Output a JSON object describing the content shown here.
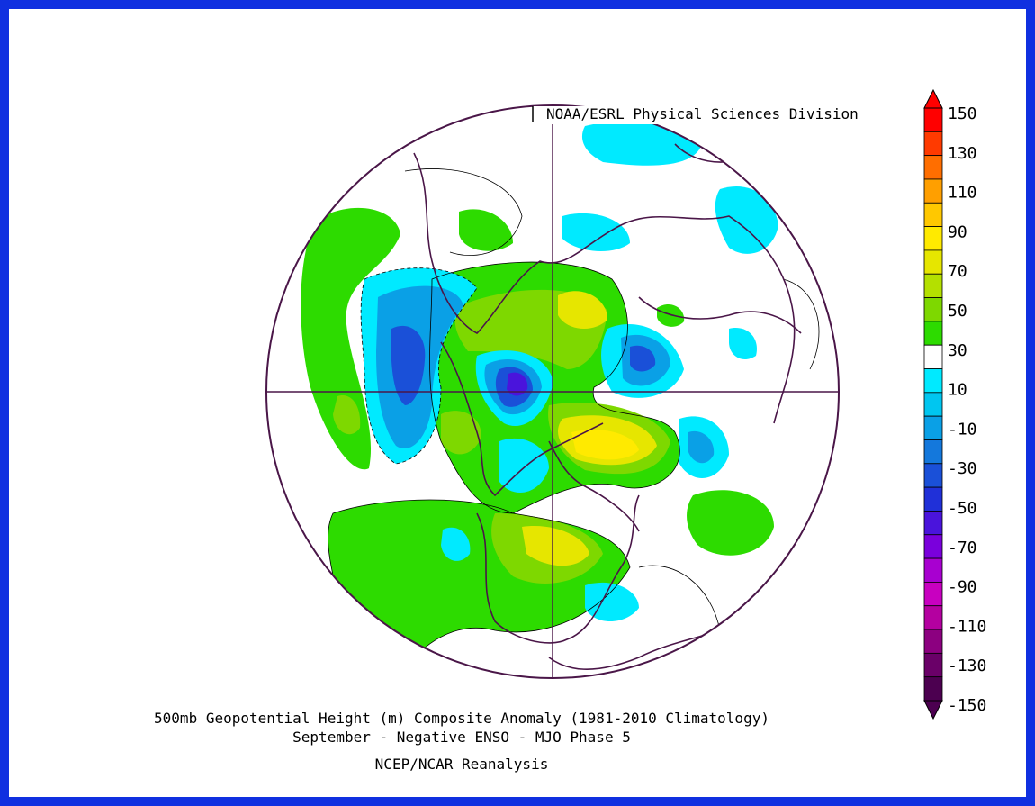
{
  "source": "NOAA/ESRL Physical Sciences Division",
  "title_line1": "500mb Geopotential Height (m) Composite Anomaly (1981-2010 Climatology)",
  "title_line2": "September - Negative ENSO - MJO Phase 5",
  "credit": "NCEP/NCAR Reanalysis",
  "colorbar": {
    "labels": [
      "150",
      "130",
      "110",
      "90",
      "70",
      "50",
      "30",
      "10",
      "-10",
      "-30",
      "-50",
      "-70",
      "-90",
      "-110",
      "-130",
      "-150"
    ],
    "colors": [
      "#ff0000",
      "#ff3a00",
      "#ff6e00",
      "#ff9f00",
      "#ffc800",
      "#ffea00",
      "#e6e600",
      "#b4e000",
      "#7ed800",
      "#2ddb00",
      "#ffffff",
      "#00eaff",
      "#00c6f0",
      "#0aa0e6",
      "#1478dc",
      "#1a50d8",
      "#2030d8",
      "#4a14dc",
      "#7a00dc",
      "#a800d0",
      "#c800c0",
      "#b400a0",
      "#8c0080",
      "#6a0068",
      "#4c0050"
    ]
  },
  "colors": {
    "border": "#1030e0",
    "map_lines": "#4a1648"
  }
}
